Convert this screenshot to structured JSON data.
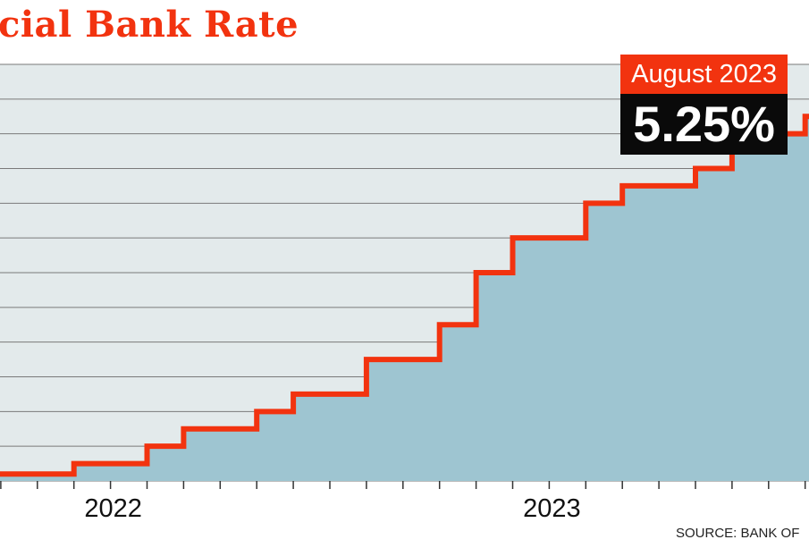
{
  "chart_data": {
    "type": "area",
    "title": "cial Bank Rate",
    "xlabel": "",
    "ylabel": "",
    "x_tick_labels": [
      "2022",
      "2023"
    ],
    "xlim": [
      "2021-09",
      "2023-08"
    ],
    "ylim": [
      0,
      6
    ],
    "grid": true,
    "step": true,
    "x": [
      "2021-09",
      "2021-10",
      "2021-11",
      "2021-12",
      "2022-01",
      "2022-02",
      "2022-03",
      "2022-04",
      "2022-05",
      "2022-06",
      "2022-07",
      "2022-08",
      "2022-09",
      "2022-10",
      "2022-11",
      "2022-12",
      "2023-01",
      "2023-02",
      "2023-03",
      "2023-04",
      "2023-05",
      "2023-06",
      "2023-07",
      "2023-08"
    ],
    "values": [
      0.1,
      0.1,
      0.1,
      0.25,
      0.25,
      0.5,
      0.75,
      0.75,
      1.0,
      1.25,
      1.25,
      1.75,
      1.75,
      2.25,
      3.0,
      3.5,
      3.5,
      4.0,
      4.25,
      4.25,
      4.5,
      5.0,
      5.0,
      5.25
    ],
    "annotation": {
      "label": "August 2023",
      "value": "5.25%"
    },
    "colors": {
      "line": "#f2330f",
      "fill": "#9ec5d1",
      "plot_bg": "#e3eaeb",
      "grid": "#7a7a7a"
    },
    "source": "SOURCE: BANK OF"
  }
}
